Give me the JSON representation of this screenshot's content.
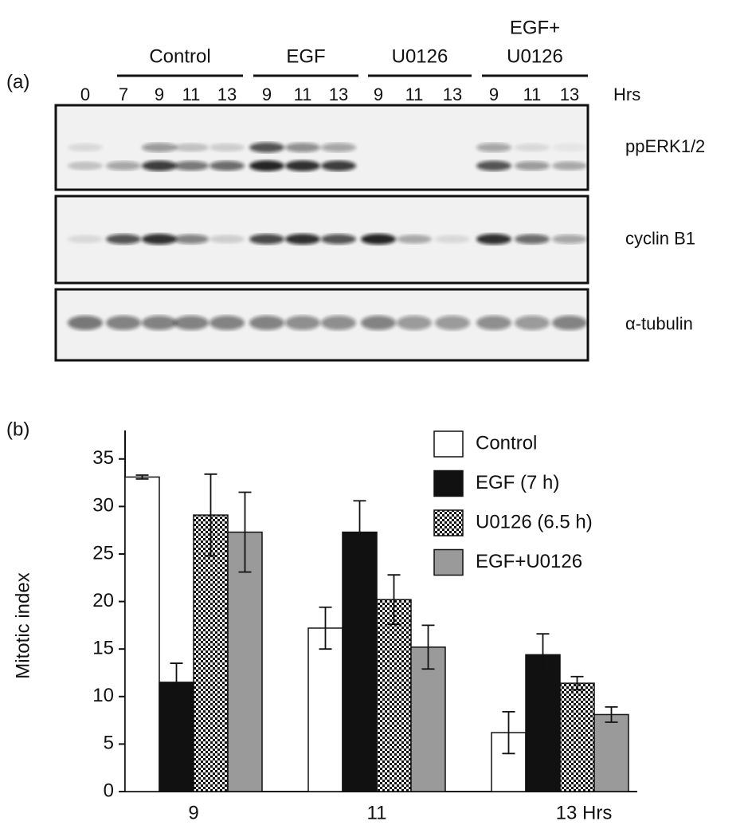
{
  "panel_a": {
    "label": "(a)",
    "groups": [
      {
        "label": "Control"
      },
      {
        "label": "EGF"
      },
      {
        "label": "U0126"
      },
      {
        "label": [
          "EGF+",
          "U0126"
        ]
      }
    ],
    "lanes": [
      "0",
      "7",
      "9",
      "11",
      "13",
      "9",
      "11",
      "13",
      "9",
      "11",
      "13",
      "9",
      "11",
      "13"
    ],
    "lane_unit": "Hrs",
    "rows": [
      {
        "label": "ppERK1/2",
        "bands": [
          [
            0.1,
            0,
            0.4,
            0.2,
            0.15,
            0.7,
            0.45,
            0.35,
            0,
            0,
            0,
            0.35,
            0.1,
            0.05
          ],
          [
            0.2,
            0.35,
            0.8,
            0.55,
            0.6,
            0.9,
            0.85,
            0.8,
            0,
            0,
            0,
            0.7,
            0.4,
            0.3
          ]
        ]
      },
      {
        "label": "cyclin B1",
        "bands": [
          [
            0.1,
            0.7,
            0.85,
            0.5,
            0.15,
            0.75,
            0.85,
            0.7,
            0.9,
            0.3,
            0.1,
            0.85,
            0.6,
            0.35
          ]
        ]
      },
      {
        "label": "α-tubulin",
        "bands": [
          [
            0.55,
            0.5,
            0.5,
            0.5,
            0.5,
            0.5,
            0.45,
            0.45,
            0.5,
            0.4,
            0.4,
            0.45,
            0.4,
            0.5
          ]
        ]
      }
    ]
  },
  "chart_data": {
    "type": "bar",
    "panel_label": "(b)",
    "y_label": "Mitotic index",
    "categories": [
      "9",
      "11",
      "13 Hrs"
    ],
    "series": [
      {
        "name": "Control",
        "color": "#ffffff",
        "values": [
          33.1,
          17.2,
          6.2
        ],
        "errors": [
          0.2,
          2.2,
          2.2
        ]
      },
      {
        "name": "EGF (7 h)",
        "color": "#111111",
        "values": [
          11.5,
          27.3,
          14.4
        ],
        "errors": [
          2.0,
          3.3,
          2.2
        ]
      },
      {
        "name": "U0126 (6.5 h)",
        "color": "#111111",
        "pattern": "checker",
        "values": [
          29.1,
          20.2,
          11.4
        ],
        "errors": [
          4.3,
          2.6,
          0.7
        ]
      },
      {
        "name": "EGF+U0126",
        "color": "#9a9a9a",
        "values": [
          27.3,
          15.2,
          8.1
        ],
        "errors": [
          4.2,
          2.3,
          0.8
        ]
      }
    ],
    "ylim": [
      0,
      38
    ],
    "yticks": [
      0,
      5,
      10,
      15,
      20,
      25,
      30,
      35
    ],
    "legend": "top-right"
  }
}
